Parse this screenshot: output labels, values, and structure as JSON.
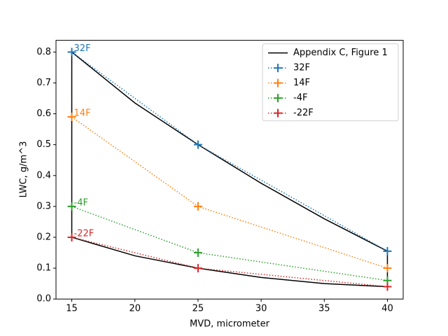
{
  "chart_data": {
    "type": "line",
    "xlabel": "MVD, micrometer",
    "ylabel": "LWC, g/m^3",
    "xlim": [
      13.75,
      41.25
    ],
    "ylim": [
      0,
      0.838
    ],
    "xticks": [
      15,
      20,
      25,
      30,
      35,
      40
    ],
    "yticks": [
      {
        "value": 0,
        "label": "0.0"
      },
      0.1,
      0.2,
      0.3,
      0.4,
      0.5,
      0.6,
      0.7,
      0.8
    ],
    "legend": "upper right",
    "series": [
      {
        "name": "Appendix C, Figure 1",
        "color": "#000000",
        "linestyle": "solid",
        "marker": "none",
        "x": [
          15,
          20,
          25,
          30,
          35,
          40,
          40,
          35,
          30,
          25,
          20,
          15,
          15
        ],
        "values": [
          0.8,
          0.635,
          0.5,
          0.375,
          0.26,
          0.155,
          0.04,
          0.05,
          0.07,
          0.1,
          0.14,
          0.2,
          0.8
        ]
      },
      {
        "name": "32F",
        "color": "#1f77b4",
        "linestyle": "dotted",
        "marker": "plus",
        "x": [
          15,
          25,
          40
        ],
        "values": [
          0.8,
          0.5,
          0.155
        ]
      },
      {
        "name": "14F",
        "color": "#ff7f0e",
        "linestyle": "dotted",
        "marker": "plus",
        "x": [
          15,
          25,
          40
        ],
        "values": [
          0.59,
          0.3,
          0.1
        ]
      },
      {
        "name": "-4F",
        "color": "#2ca02c",
        "linestyle": "dotted",
        "marker": "plus",
        "x": [
          15,
          25,
          40
        ],
        "values": [
          0.3,
          0.15,
          0.06
        ]
      },
      {
        "name": "-22F",
        "color": "#d62728",
        "linestyle": "dotted",
        "marker": "plus",
        "x": [
          15,
          25,
          40
        ],
        "values": [
          0.2,
          0.1,
          0.04
        ]
      }
    ]
  }
}
